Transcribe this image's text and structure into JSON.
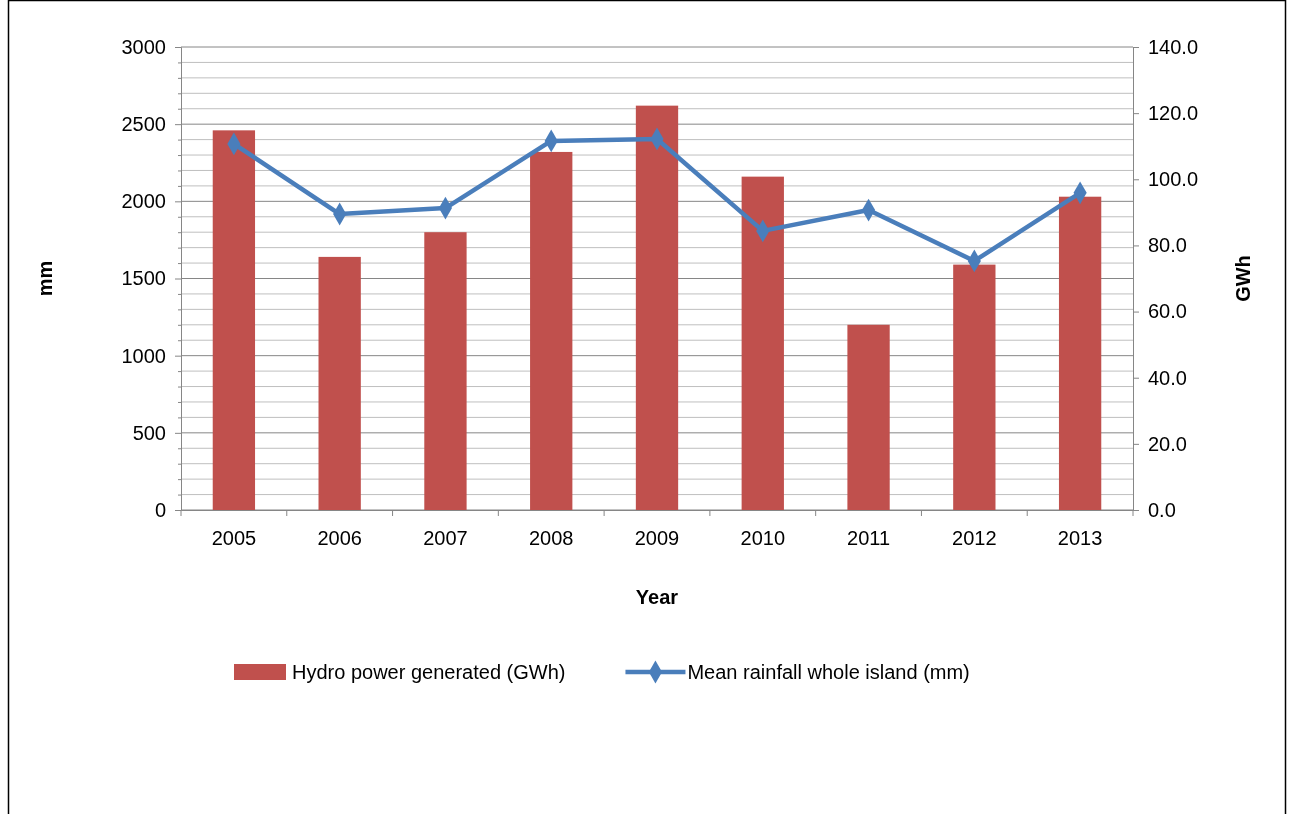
{
  "chart_data": {
    "type": "bar",
    "xlabel": "Year",
    "ylabel": "mm",
    "y2label": "GWh",
    "categories": [
      "2005",
      "2006",
      "2007",
      "2008",
      "2009",
      "2010",
      "2011",
      "2012",
      "2013"
    ],
    "series": [
      {
        "name": "Hydro power generated (GWh)",
        "color": "#c0504d",
        "values": [
          2460,
          1640,
          1800,
          2320,
          2620,
          2160,
          1200,
          1590,
          2030
        ]
      },
      {
        "name": "Mean rainfall whole island (mm)",
        "type": "line",
        "axis": "y2",
        "color": "#4a7ebb",
        "marker": "diamond",
        "line_style": "solid",
        "values": [
          110.7,
          89.5,
          91.3,
          111.6,
          112.2,
          84.4,
          90.7,
          75.3,
          95.9
        ]
      }
    ],
    "ylim": [
      0,
      3000
    ],
    "yticks": [
      0,
      {
        "value": 100,
        "label": null
      },
      {
        "value": 200,
        "label": null
      },
      {
        "value": 300,
        "label": null
      },
      {
        "value": 400,
        "label": null
      },
      500,
      {
        "value": 600,
        "label": null
      },
      {
        "value": 700,
        "label": null
      },
      {
        "value": 800,
        "label": null
      },
      {
        "value": 900,
        "label": null
      },
      1000,
      {
        "value": 1100,
        "label": null
      },
      {
        "value": 1200,
        "label": null
      },
      {
        "value": 1300,
        "label": null
      },
      {
        "value": 1400,
        "label": null
      },
      1500,
      {
        "value": 1600,
        "label": null
      },
      {
        "value": 1700,
        "label": null
      },
      {
        "value": 1800,
        "label": null
      },
      {
        "value": 1900,
        "label": null
      },
      2000,
      {
        "value": 2100,
        "label": null
      },
      {
        "value": 2200,
        "label": null
      },
      {
        "value": 2300,
        "label": null
      },
      {
        "value": 2400,
        "label": null
      },
      2500,
      {
        "value": 2600,
        "label": null
      },
      {
        "value": 2700,
        "label": null
      },
      {
        "value": 2800,
        "label": null
      },
      {
        "value": 2900,
        "label": null
      },
      3000
    ],
    "y2lim": [
      0,
      140
    ],
    "y2ticks": [
      {
        "value": 0,
        "label": "0.0"
      },
      {
        "value": 20,
        "label": "20.0"
      },
      {
        "value": 40,
        "label": "40.0"
      },
      {
        "value": 60,
        "label": "60.0"
      },
      {
        "value": 80,
        "label": "80.0"
      },
      {
        "value": 100,
        "label": "100.0"
      },
      {
        "value": 120,
        "label": "120.0"
      },
      {
        "value": 140,
        "label": "140.0"
      }
    ],
    "grid": "y",
    "legend": "bottom"
  }
}
